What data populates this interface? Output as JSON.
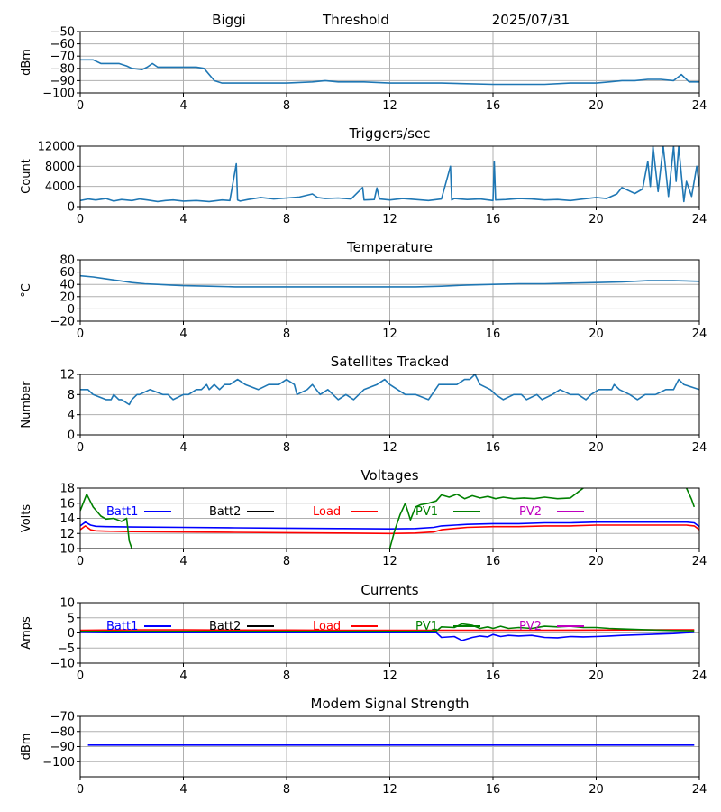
{
  "header": {
    "station": "Biggi",
    "label": "Threshold",
    "date": "2025/07/31"
  },
  "colors": {
    "default": "#1f77b4",
    "batt1": "#0000ff",
    "batt2": "#000000",
    "load": "#ff0000",
    "pv1": "#008000",
    "pv2": "#bf00bf",
    "grid": "#b0b0b0"
  },
  "legend_labels": [
    "Batt1",
    "Batt2",
    "Load",
    "PV1",
    "PV2"
  ],
  "chart_data": [
    {
      "type": "line",
      "title": "",
      "ylabel": "dBm",
      "xlim": [
        0,
        24
      ],
      "xticks": [
        "0",
        "4",
        "8",
        "12",
        "16",
        "20",
        "24"
      ],
      "ylim": [
        -100,
        -50
      ],
      "yticks": [
        "−50",
        "−60",
        "−70",
        "−80",
        "−90",
        "−100"
      ],
      "ytick_values": [
        -50,
        -60,
        -70,
        -80,
        -90,
        -100
      ],
      "grid": true,
      "legend": "none",
      "series": [
        {
          "color": "#1f77b4",
          "x": [
            0,
            0.5,
            0.8,
            1.0,
            1.5,
            1.8,
            2.0,
            2.4,
            2.6,
            2.8,
            3.0,
            3.5,
            4.0,
            4.5,
            4.8,
            5.0,
            5.2,
            5.5,
            6,
            7,
            8,
            9,
            9.5,
            10,
            11,
            12,
            13,
            14,
            16,
            18,
            19,
            20,
            20.5,
            21,
            21.5,
            22,
            22.5,
            23,
            23.3,
            23.6,
            24
          ],
          "y": [
            -73,
            -73,
            -76,
            -76,
            -76,
            -78,
            -80,
            -81,
            -79,
            -76,
            -79,
            -79,
            -79,
            -79,
            -80,
            -85,
            -90,
            -92,
            -92,
            -92,
            -92,
            -91,
            -90,
            -91,
            -91,
            -92,
            -92,
            -92,
            -93,
            -93,
            -92,
            -92,
            -91,
            -90,
            -90,
            -89,
            -89,
            -90,
            -85,
            -91,
            -91
          ]
        }
      ]
    },
    {
      "type": "line",
      "title": "Triggers/sec",
      "ylabel": "Count",
      "xlim": [
        0,
        24
      ],
      "xticks": [
        "0",
        "4",
        "8",
        "12",
        "16",
        "20",
        "24"
      ],
      "ylim": [
        0,
        12000
      ],
      "yticks": [
        "0",
        "4000",
        "8000",
        "12000"
      ],
      "ytick_values": [
        0,
        4000,
        8000,
        12000
      ],
      "grid": true,
      "legend": "none",
      "series": [
        {
          "color": "#1f77b4",
          "x": [
            0,
            0.3,
            0.6,
            1.0,
            1.3,
            1.6,
            2.0,
            2.3,
            2.6,
            3.0,
            3.3,
            3.6,
            4.0,
            4.5,
            5.0,
            5.5,
            5.8,
            6.05,
            6.1,
            6.2,
            6.5,
            7.0,
            7.5,
            8.0,
            8.5,
            9.0,
            9.2,
            9.5,
            10.0,
            10.5,
            10.95,
            11.0,
            11.4,
            11.5,
            11.6,
            12.0,
            12.5,
            13.0,
            13.5,
            14.0,
            14.35,
            14.4,
            14.5,
            15.0,
            15.5,
            16.0,
            16.05,
            16.1,
            16.5,
            17.0,
            17.5,
            18.0,
            18.5,
            19.0,
            19.5,
            20.0,
            20.4,
            20.8,
            21.0,
            21.5,
            21.8,
            22.0,
            22.1,
            22.2,
            22.4,
            22.6,
            22.8,
            23.0,
            23.1,
            23.2,
            23.4,
            23.5,
            23.7,
            23.9,
            24
          ],
          "y": [
            1200,
            1500,
            1300,
            1600,
            1100,
            1400,
            1200,
            1500,
            1300,
            1000,
            1200,
            1300,
            1100,
            1200,
            1000,
            1300,
            1200,
            8500,
            1300,
            1100,
            1400,
            1800,
            1500,
            1700,
            1900,
            2500,
            1800,
            1600,
            1700,
            1500,
            3800,
            1300,
            1400,
            3700,
            1500,
            1300,
            1600,
            1400,
            1200,
            1500,
            8000,
            1300,
            1600,
            1400,
            1500,
            1200,
            9000,
            1300,
            1400,
            1600,
            1500,
            1300,
            1400,
            1200,
            1500,
            1800,
            1600,
            2500,
            3800,
            2600,
            3500,
            9000,
            4000,
            12000,
            3000,
            12000,
            2000,
            12000,
            5000,
            12000,
            1000,
            5000,
            2000,
            8000,
            4000
          ]
        }
      ]
    },
    {
      "type": "line",
      "title": "Temperature",
      "ylabel": "°C",
      "xlim": [
        0,
        24
      ],
      "xticks": [
        "0",
        "4",
        "8",
        "12",
        "16",
        "20",
        "24"
      ],
      "ylim": [
        -20,
        80
      ],
      "yticks": [
        "−20",
        "0",
        "20",
        "40",
        "60",
        "80"
      ],
      "ytick_values": [
        -20,
        0,
        20,
        40,
        60,
        80
      ],
      "grid": true,
      "legend": "none",
      "series": [
        {
          "color": "#1f77b4",
          "x": [
            0,
            0.5,
            1,
            1.5,
            2,
            2.5,
            3,
            3.5,
            4,
            5,
            6,
            7,
            8,
            9,
            10,
            11,
            12,
            13,
            14,
            15,
            16,
            17,
            18,
            19,
            20,
            21,
            22,
            23,
            24
          ],
          "y": [
            54,
            52,
            49,
            46,
            43,
            41,
            40,
            39,
            38,
            37,
            36,
            36,
            36,
            36,
            36,
            36,
            36,
            36,
            37,
            39,
            40,
            41,
            41,
            42,
            43,
            44,
            46,
            46,
            45
          ]
        }
      ]
    },
    {
      "type": "line",
      "title": "Satellites Tracked",
      "ylabel": "Number",
      "xlim": [
        0,
        24
      ],
      "xticks": [
        "0",
        "4",
        "8",
        "12",
        "16",
        "20",
        "24"
      ],
      "ylim": [
        0,
        12
      ],
      "yticks": [
        "0",
        "4",
        "8",
        "12"
      ],
      "ytick_values": [
        0,
        4,
        8,
        12
      ],
      "grid": true,
      "legend": "none",
      "series": [
        {
          "color": "#1f77b4",
          "x": [
            0,
            0.3,
            0.5,
            1.0,
            1.2,
            1.3,
            1.5,
            1.6,
            1.9,
            2.0,
            2.2,
            2.3,
            2.7,
            3.2,
            3.4,
            3.6,
            4.0,
            4.2,
            4.5,
            4.7,
            4.9,
            5.0,
            5.2,
            5.4,
            5.6,
            5.8,
            6.1,
            6.4,
            6.9,
            7.3,
            7.7,
            8.0,
            8.3,
            8.4,
            8.8,
            9.0,
            9.3,
            9.6,
            10,
            10.3,
            10.6,
            11.0,
            11.5,
            11.8,
            12.0,
            12.3,
            12.6,
            13.0,
            13.5,
            13.9,
            14.3,
            14.6,
            14.9,
            15.1,
            15.3,
            15.5,
            15.9,
            16.1,
            16.4,
            16.8,
            17.1,
            17.3,
            17.7,
            17.9,
            18.3,
            18.6,
            19.0,
            19.3,
            19.6,
            19.8,
            20.1,
            20.6,
            20.7,
            20.9,
            21.3,
            21.6,
            21.9,
            22.3,
            22.7,
            23.0,
            23.1,
            23.2,
            23.4,
            24
          ],
          "y": [
            9,
            9,
            8,
            7,
            7,
            8,
            7,
            7,
            6,
            7,
            8,
            8,
            9,
            8,
            8,
            7,
            8,
            8,
            9,
            9,
            10,
            9,
            10,
            9,
            10,
            10,
            11,
            10,
            9,
            10,
            10,
            11,
            10,
            8,
            9,
            10,
            8,
            9,
            7,
            8,
            7,
            9,
            10,
            11,
            10,
            9,
            8,
            8,
            7,
            10,
            10,
            10,
            11,
            11,
            12,
            10,
            9,
            8,
            7,
            8,
            8,
            7,
            8,
            7,
            8,
            9,
            8,
            8,
            7,
            8,
            9,
            9,
            10,
            9,
            8,
            7,
            8,
            8,
            9,
            9,
            10,
            11,
            10,
            9
          ]
        }
      ]
    },
    {
      "type": "line",
      "title": "Voltages",
      "ylabel": "Volts",
      "xlim": [
        0,
        24
      ],
      "xticks": [
        "0",
        "4",
        "8",
        "12",
        "16",
        "20",
        "24"
      ],
      "ylim": [
        10,
        18
      ],
      "yticks": [
        "10",
        "12",
        "14",
        "16",
        "18"
      ],
      "ytick_values": [
        10,
        12,
        14,
        16,
        18
      ],
      "grid": true,
      "legend": "top",
      "legend_entries": [
        "Batt1",
        "Batt2",
        "Load",
        "PV1",
        "PV2"
      ],
      "series": [
        {
          "name": "Batt1",
          "color": "#0000ff",
          "x": [
            0,
            0.2,
            0.4,
            0.6,
            1,
            2,
            4,
            6,
            8,
            10,
            12,
            13,
            13.7,
            14,
            15,
            16,
            17,
            18,
            19,
            20,
            21,
            22,
            23,
            23.5,
            23.8,
            24
          ],
          "y": [
            13.0,
            13.5,
            13.1,
            12.95,
            12.9,
            12.85,
            12.8,
            12.75,
            12.7,
            12.65,
            12.6,
            12.65,
            12.8,
            13.0,
            13.2,
            13.3,
            13.3,
            13.4,
            13.4,
            13.5,
            13.5,
            13.5,
            13.5,
            13.5,
            13.4,
            12.9
          ]
        },
        {
          "name": "Load",
          "color": "#ff0000",
          "x": [
            0,
            0.2,
            0.4,
            0.6,
            1,
            2,
            4,
            6,
            8,
            10,
            12,
            13,
            13.7,
            14,
            15,
            16,
            17,
            18,
            19,
            20,
            21,
            22,
            23,
            23.5,
            23.8,
            24
          ],
          "y": [
            12.5,
            13.0,
            12.5,
            12.35,
            12.3,
            12.25,
            12.2,
            12.15,
            12.1,
            12.05,
            12.0,
            12.05,
            12.2,
            12.5,
            12.8,
            12.9,
            12.9,
            13.0,
            13.0,
            13.1,
            13.1,
            13.1,
            13.1,
            13.1,
            13.0,
            12.5
          ]
        },
        {
          "name": "PV1",
          "color": "#008000",
          "x": [
            0,
            0.25,
            0.5,
            0.8,
            1.0,
            1.3,
            1.6,
            1.8,
            1.9,
            2.0,
            null,
            12.0,
            12.2,
            12.4,
            12.6,
            12.8,
            13.0,
            13.2,
            13.5,
            13.8,
            14.0,
            14.3,
            14.6,
            14.9,
            15.2,
            15.5,
            15.8,
            16.1,
            16.4,
            16.8,
            17.2,
            17.6,
            18.0,
            18.5,
            19.0,
            19.3,
            19.5,
            null,
            23.5,
            23.7,
            23.8
          ],
          "y": [
            15,
            17.2,
            15.5,
            14.3,
            13.9,
            14.0,
            13.6,
            14.0,
            11,
            10,
            null,
            10,
            12.5,
            14.5,
            16.0,
            13.8,
            15.5,
            15.8,
            16.0,
            16.3,
            17.1,
            16.8,
            17.2,
            16.6,
            17.0,
            16.7,
            16.9,
            16.6,
            16.8,
            16.6,
            16.7,
            16.6,
            16.8,
            16.6,
            16.7,
            17.5,
            18,
            null,
            18,
            16.5,
            15.5
          ]
        }
      ]
    },
    {
      "type": "line",
      "title": "Currents",
      "ylabel": "Amps",
      "xlim": [
        0,
        24
      ],
      "xticks": [
        "0",
        "4",
        "8",
        "12",
        "16",
        "20",
        "24"
      ],
      "ylim": [
        -10,
        10
      ],
      "yticks": [
        "−10",
        "−5",
        "0",
        "5",
        "10"
      ],
      "ytick_values": [
        -10,
        -5,
        0,
        5,
        10
      ],
      "grid": true,
      "legend": "top",
      "legend_entries": [
        "Batt1",
        "Batt2",
        "Load",
        "PV1",
        "PV2"
      ],
      "series": [
        {
          "name": "Batt1",
          "color": "#0000ff",
          "x": [
            0,
            1,
            2,
            4,
            6,
            8,
            10,
            12,
            13,
            13.8,
            14,
            14.5,
            14.8,
            15.2,
            15.5,
            15.8,
            16,
            16.3,
            16.6,
            17,
            17.5,
            18,
            18.5,
            19,
            19.5,
            20,
            20.5,
            21,
            22,
            23,
            23.8
          ],
          "y": [
            0.2,
            0.1,
            0.1,
            0.1,
            0.1,
            0.1,
            0.1,
            0.1,
            0.1,
            0.1,
            -1.5,
            -1.2,
            -2.5,
            -1.5,
            -1,
            -1.3,
            -0.5,
            -1.2,
            -0.8,
            -1,
            -0.8,
            -1.5,
            -1.6,
            -1.2,
            -1.3,
            -1.2,
            -1,
            -0.8,
            -0.5,
            -0.2,
            0.2
          ]
        },
        {
          "name": "Load",
          "color": "#ff0000",
          "x": [
            0,
            2,
            4,
            6,
            8,
            10,
            12,
            14,
            16,
            18,
            20,
            22,
            23.8
          ],
          "y": [
            0.9,
            1,
            1,
            0.95,
            0.95,
            0.9,
            0.9,
            0.9,
            0.9,
            0.9,
            0.95,
            1,
            1
          ]
        },
        {
          "name": "PV1",
          "color": "#008000",
          "x": [
            0,
            2,
            4,
            6,
            8,
            10,
            12,
            13,
            13.8,
            14,
            14.5,
            14.8,
            15.2,
            15.5,
            15.8,
            16,
            16.3,
            16.6,
            17,
            17.5,
            18,
            18.5,
            19,
            19.5,
            20,
            20.5,
            21,
            22,
            23,
            23.8
          ],
          "y": [
            0.5,
            0.5,
            0.5,
            0.5,
            0.5,
            0.5,
            0.5,
            0.5,
            0.6,
            2,
            1.8,
            3,
            2.5,
            1.5,
            2,
            1.5,
            2.2,
            1.5,
            1.8,
            1.5,
            2.2,
            2.0,
            2.2,
            1.8,
            1.8,
            1.5,
            1.3,
            1,
            0.8,
            0.7
          ]
        }
      ]
    },
    {
      "type": "line",
      "title": "Modem Signal Strength",
      "ylabel": "dBm",
      "xlim": [
        0,
        24
      ],
      "xticks": [
        "0",
        "4",
        "8",
        "12",
        "16",
        "20",
        "24"
      ],
      "ylim": [
        -110,
        -70
      ],
      "yticks": [
        "−70",
        "−80",
        "−90",
        "−100"
      ],
      "ytick_values": [
        -70,
        -80,
        -90,
        -100
      ],
      "grid": true,
      "legend": "none",
      "series": [
        {
          "color": "#0000ff",
          "x": [
            0.3,
            23.8
          ],
          "y": [
            -89,
            -89
          ]
        }
      ]
    }
  ]
}
